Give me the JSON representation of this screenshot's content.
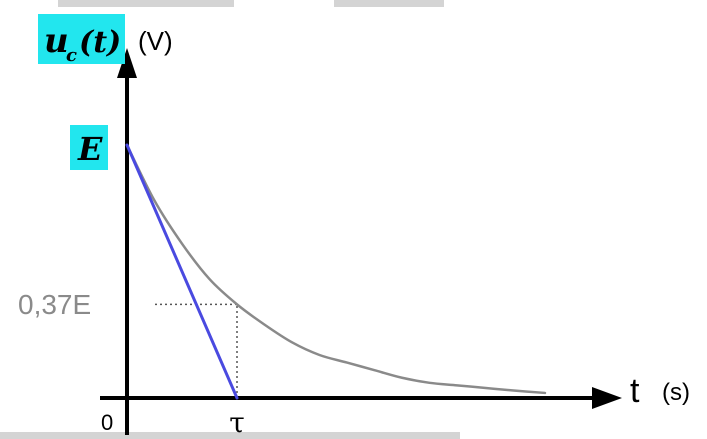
{
  "chart_data": {
    "type": "line",
    "title": "",
    "ylabel_symbol": "u",
    "ylabel_subscript": "c",
    "ylabel_argument": "(t)",
    "ylabel_unit": "(V)",
    "xlabel": "t",
    "xlabel_unit": "(s)",
    "origin_label": "0",
    "y_ticks": [
      {
        "label": "E",
        "value": 1.0
      },
      {
        "label": "0,37E",
        "value": 0.37
      }
    ],
    "x_ticks": [
      {
        "label": "τ",
        "value": 1.0
      }
    ],
    "xlim": [
      0,
      3.85
    ],
    "ylim": [
      0,
      1.0
    ],
    "series": [
      {
        "kind": "exponential-decay",
        "color": "#8a8a8a",
        "x": [
          0,
          0.25,
          0.5,
          0.75,
          1.0,
          1.25,
          1.5,
          1.75,
          2.0,
          2.25,
          2.5,
          2.75,
          3.0,
          3.25,
          3.5,
          3.8
        ],
        "y": [
          1.0,
          0.78,
          0.61,
          0.47,
          0.37,
          0.29,
          0.22,
          0.17,
          0.14,
          0.11,
          0.08,
          0.06,
          0.05,
          0.04,
          0.03,
          0.02
        ]
      },
      {
        "kind": "tangent-at-origin",
        "color": "#4a4ae0",
        "x": [
          0,
          1.0
        ],
        "y": [
          1.0,
          0.0
        ]
      }
    ],
    "guides": [
      {
        "kind": "horizontal",
        "at_y": 0.37,
        "from_x": 0,
        "to_x": 1.0
      },
      {
        "kind": "vertical",
        "at_x": 1.0,
        "from_y": 0,
        "to_y": 0.37
      }
    ],
    "colors": {
      "highlight": "#22e6ee",
      "axis": "#000000",
      "tick_label_muted": "#8a8a8a",
      "guide": "#555555",
      "frame_bars": "#d4d4d4"
    },
    "grid": false,
    "legend": "none"
  }
}
